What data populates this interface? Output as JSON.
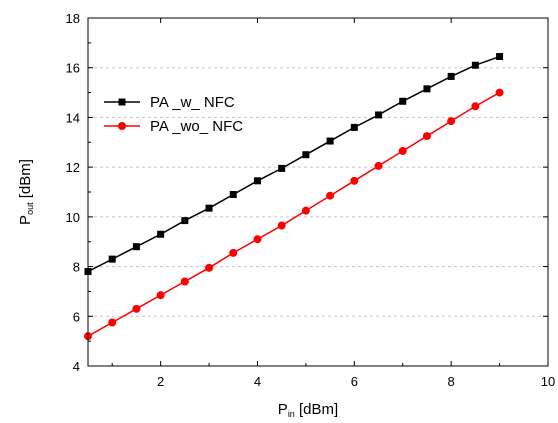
{
  "chart_data": {
    "type": "line",
    "xlabel": "P",
    "xlabel_sub": "in",
    "xlabel_unit": " [dBm]",
    "ylabel": "P",
    "ylabel_sub": "out",
    "ylabel_unit": " [dBm]",
    "xlim": [
      0.5,
      10
    ],
    "ylim": [
      4,
      18
    ],
    "x_ticks": [
      2,
      4,
      6,
      8,
      10
    ],
    "y_ticks": [
      4,
      6,
      8,
      10,
      12,
      14,
      16,
      18
    ],
    "grid": "horizontal-dashed",
    "legend_position": "upper-left",
    "x": [
      0.5,
      1.0,
      1.5,
      2.0,
      2.5,
      3.0,
      3.5,
      4.0,
      4.5,
      5.0,
      5.5,
      6.0,
      6.5,
      7.0,
      7.5,
      8.0,
      8.5,
      9.0
    ],
    "series": [
      {
        "name": "PA _w_ NFC",
        "color": "#000000",
        "marker": "square",
        "values": [
          7.8,
          8.3,
          8.8,
          9.3,
          9.85,
          10.35,
          10.9,
          11.45,
          11.95,
          12.5,
          13.05,
          13.6,
          14.1,
          14.65,
          15.15,
          15.65,
          16.1,
          16.45
        ]
      },
      {
        "name": "PA _wo_ NFC",
        "color": "#ff0000",
        "marker": "circle",
        "values": [
          5.2,
          5.75,
          6.3,
          6.85,
          7.4,
          7.95,
          8.55,
          9.1,
          9.65,
          10.25,
          10.85,
          11.45,
          12.05,
          12.65,
          13.25,
          13.85,
          14.45,
          15.0
        ]
      }
    ]
  }
}
